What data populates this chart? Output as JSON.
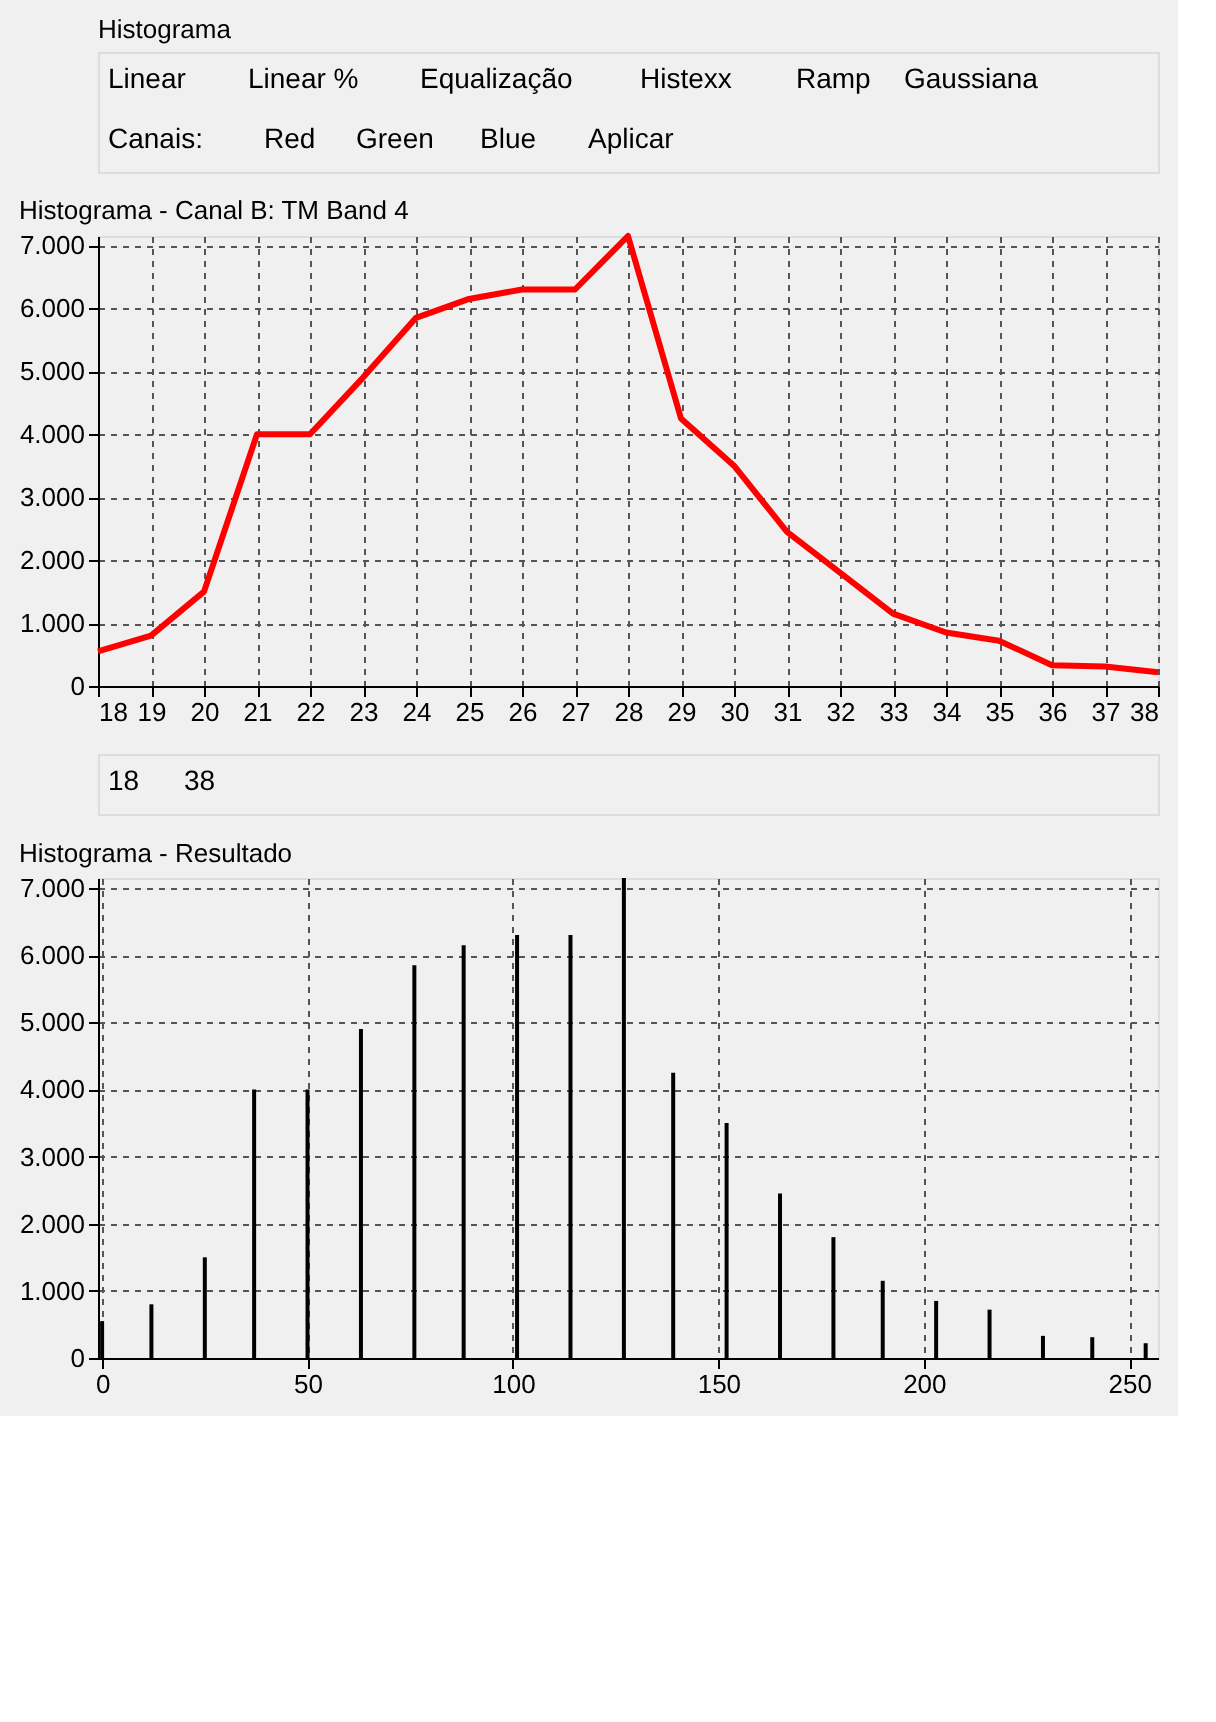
{
  "chart_data": [
    {
      "type": "other",
      "title": "Histograma",
      "annotations": [
        "Linear",
        "Linear %",
        "Equalização",
        "Histexx",
        "Ramp",
        "Gaussiana",
        "Canais:",
        "Red",
        "Green",
        "Blue",
        "Aplicar"
      ]
    },
    {
      "type": "line",
      "title": "Histograma - Canal B: TM Band 4",
      "x": [
        18,
        19,
        20,
        21,
        22,
        23,
        24,
        25,
        26,
        27,
        28,
        29,
        30,
        31,
        32,
        33,
        34,
        35,
        36,
        37,
        38
      ],
      "series": [
        {
          "color": "#ff0000",
          "values": [
            550,
            800,
            1500,
            4000,
            4000,
            4900,
            5850,
            6150,
            6300,
            6300,
            7150,
            4250,
            3500,
            2450,
            1800,
            1150,
            850,
            720,
            330,
            310,
            220
          ]
        }
      ],
      "xlim": [
        18,
        38
      ],
      "xticks": [
        18,
        19,
        20,
        21,
        22,
        23,
        24,
        25,
        26,
        27,
        28,
        29,
        30,
        31,
        32,
        33,
        34,
        35,
        36,
        37,
        38
      ],
      "ylim": [
        0,
        7150
      ],
      "yticks": [
        0,
        {
          "value": 1000,
          "label": "1.000"
        },
        {
          "value": 2000,
          "label": "2.000"
        },
        {
          "value": 3000,
          "label": "3.000"
        },
        {
          "value": 4000,
          "label": "4.000"
        },
        {
          "value": 5000,
          "label": "5.000"
        },
        {
          "value": 6000,
          "label": "6.000"
        },
        {
          "value": 7000,
          "label": "7.000"
        }
      ],
      "grid": true,
      "line_style": "solid",
      "legend": false
    },
    {
      "type": "other",
      "annotations": [
        "18",
        "38"
      ]
    },
    {
      "type": "bar",
      "title": "Histograma - Resultado",
      "x": [
        0,
        12,
        25,
        37,
        50,
        63,
        76,
        88,
        101,
        114,
        127,
        139,
        152,
        165,
        178,
        190,
        203,
        216,
        229,
        241,
        254
      ],
      "series": [
        {
          "color": "#000000",
          "values": [
            550,
            800,
            1500,
            4000,
            4000,
            4900,
            5850,
            6150,
            6300,
            6300,
            7150,
            4250,
            3500,
            2450,
            1800,
            1150,
            850,
            720,
            330,
            310,
            220
          ]
        }
      ],
      "xlim": [
        -1,
        257
      ],
      "xticks": [
        0,
        50,
        100,
        150,
        200,
        250
      ],
      "ylim": [
        0,
        7150
      ],
      "yticks": [
        0,
        {
          "value": 1000,
          "label": "1.000"
        },
        {
          "value": 2000,
          "label": "2.000"
        },
        {
          "value": 3000,
          "label": "3.000"
        },
        {
          "value": 4000,
          "label": "4.000"
        },
        {
          "value": 5000,
          "label": "5.000"
        },
        {
          "value": 6000,
          "label": "6.000"
        },
        {
          "value": 7000,
          "label": "7.000"
        }
      ],
      "grid": true,
      "legend": false
    }
  ]
}
